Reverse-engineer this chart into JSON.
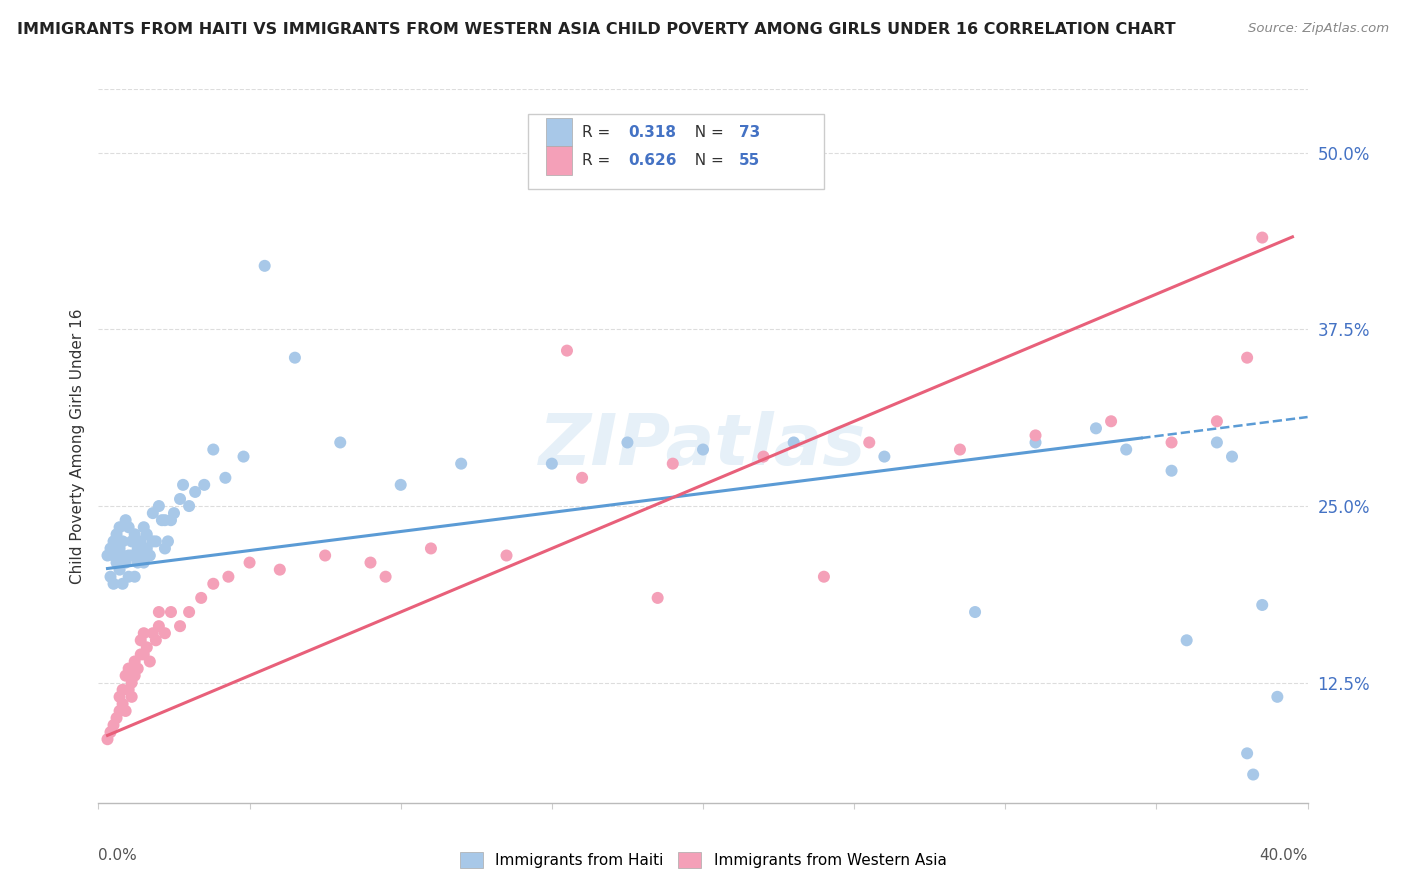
{
  "title": "IMMIGRANTS FROM HAITI VS IMMIGRANTS FROM WESTERN ASIA CHILD POVERTY AMONG GIRLS UNDER 16 CORRELATION CHART",
  "source": "Source: ZipAtlas.com",
  "ylabel": "Child Poverty Among Girls Under 16",
  "ylabel_ticks": [
    "12.5%",
    "25.0%",
    "37.5%",
    "50.0%"
  ],
  "ylabel_values": [
    0.125,
    0.25,
    0.375,
    0.5
  ],
  "xlim": [
    0.0,
    0.4
  ],
  "ylim": [
    0.04,
    0.545
  ],
  "r_haiti": 0.318,
  "n_haiti": 73,
  "r_western_asia": 0.626,
  "n_western_asia": 55,
  "color_haiti": "#a8c8e8",
  "color_western_asia": "#f4a0b8",
  "color_haiti_line": "#5b9bd5",
  "color_western_asia_line": "#e8607a",
  "color_value": "#4472c4",
  "watermark": "ZIPatlas",
  "haiti_x": [
    0.003,
    0.004,
    0.004,
    0.005,
    0.005,
    0.005,
    0.006,
    0.006,
    0.007,
    0.007,
    0.007,
    0.008,
    0.008,
    0.008,
    0.009,
    0.009,
    0.01,
    0.01,
    0.01,
    0.011,
    0.011,
    0.012,
    0.012,
    0.012,
    0.013,
    0.013,
    0.014,
    0.014,
    0.015,
    0.015,
    0.016,
    0.016,
    0.017,
    0.018,
    0.018,
    0.019,
    0.02,
    0.021,
    0.022,
    0.022,
    0.023,
    0.024,
    0.025,
    0.027,
    0.028,
    0.03,
    0.032,
    0.035,
    0.038,
    0.042,
    0.048,
    0.055,
    0.065,
    0.08,
    0.1,
    0.12,
    0.15,
    0.175,
    0.2,
    0.23,
    0.26,
    0.29,
    0.31,
    0.33,
    0.34,
    0.355,
    0.36,
    0.37,
    0.375,
    0.38,
    0.382,
    0.385,
    0.39
  ],
  "haiti_y": [
    0.215,
    0.22,
    0.2,
    0.215,
    0.225,
    0.195,
    0.21,
    0.23,
    0.205,
    0.22,
    0.235,
    0.195,
    0.215,
    0.225,
    0.21,
    0.24,
    0.2,
    0.215,
    0.235,
    0.215,
    0.225,
    0.2,
    0.215,
    0.23,
    0.21,
    0.22,
    0.225,
    0.215,
    0.21,
    0.235,
    0.22,
    0.23,
    0.215,
    0.225,
    0.245,
    0.225,
    0.25,
    0.24,
    0.22,
    0.24,
    0.225,
    0.24,
    0.245,
    0.255,
    0.265,
    0.25,
    0.26,
    0.265,
    0.29,
    0.27,
    0.285,
    0.42,
    0.355,
    0.295,
    0.265,
    0.28,
    0.28,
    0.295,
    0.29,
    0.295,
    0.285,
    0.175,
    0.295,
    0.305,
    0.29,
    0.275,
    0.155,
    0.295,
    0.285,
    0.075,
    0.06,
    0.18,
    0.115
  ],
  "western_asia_x": [
    0.003,
    0.004,
    0.005,
    0.006,
    0.007,
    0.007,
    0.008,
    0.008,
    0.009,
    0.009,
    0.01,
    0.01,
    0.011,
    0.011,
    0.012,
    0.012,
    0.013,
    0.014,
    0.014,
    0.015,
    0.015,
    0.016,
    0.017,
    0.018,
    0.019,
    0.02,
    0.022,
    0.024,
    0.027,
    0.03,
    0.034,
    0.038,
    0.043,
    0.05,
    0.06,
    0.075,
    0.09,
    0.11,
    0.135,
    0.16,
    0.19,
    0.22,
    0.255,
    0.285,
    0.31,
    0.335,
    0.355,
    0.37,
    0.38,
    0.385,
    0.155,
    0.24,
    0.185,
    0.095,
    0.02
  ],
  "western_asia_y": [
    0.085,
    0.09,
    0.095,
    0.1,
    0.105,
    0.115,
    0.11,
    0.12,
    0.105,
    0.13,
    0.12,
    0.135,
    0.115,
    0.125,
    0.13,
    0.14,
    0.135,
    0.145,
    0.155,
    0.145,
    0.16,
    0.15,
    0.14,
    0.16,
    0.155,
    0.165,
    0.16,
    0.175,
    0.165,
    0.175,
    0.185,
    0.195,
    0.2,
    0.21,
    0.205,
    0.215,
    0.21,
    0.22,
    0.215,
    0.27,
    0.28,
    0.285,
    0.295,
    0.29,
    0.3,
    0.31,
    0.295,
    0.31,
    0.355,
    0.44,
    0.36,
    0.2,
    0.185,
    0.2,
    0.175
  ]
}
